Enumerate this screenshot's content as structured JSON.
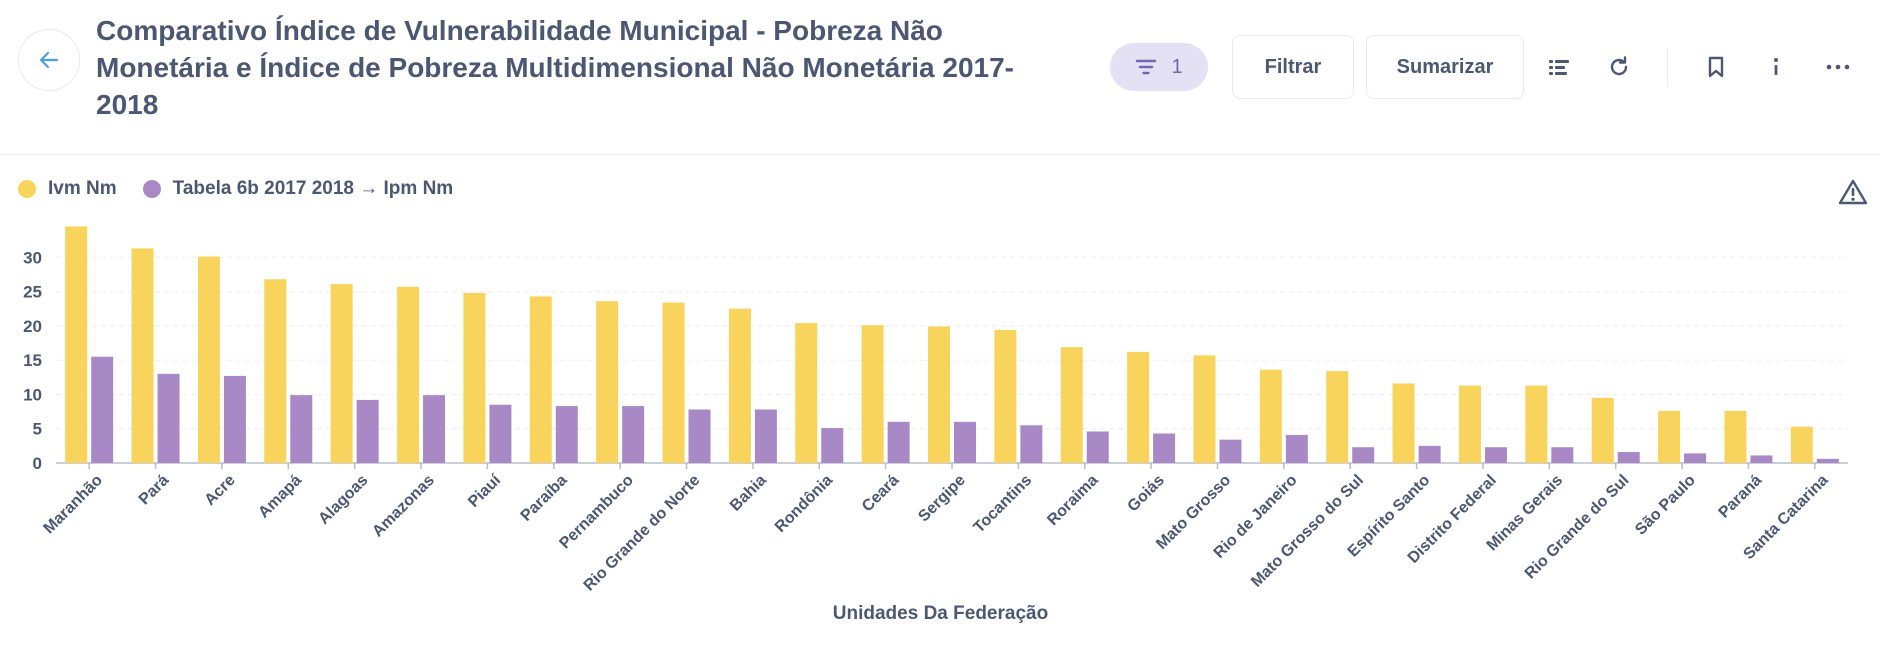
{
  "header": {
    "title": "Comparativo Índice de Vulnerabilidade Municipal - Pobreza Não Monetária e Índice de Pobreza Multidimensional Não Monetária 2017-2018",
    "filter_count": "1",
    "filter_button": "Filtrar",
    "summarize_button": "Sumarizar"
  },
  "colors": {
    "series1": "#f9d45c",
    "series2": "#a989c5",
    "accent": "#509ee3"
  },
  "icons": [
    "arrow-left-icon",
    "filter-icon",
    "list-icon",
    "refresh-icon",
    "bookmark-icon",
    "info-icon",
    "more-icon",
    "warning-icon"
  ],
  "chart_data": {
    "type": "bar",
    "title": "",
    "xlabel": "Unidades Da Federação",
    "ylabel": "",
    "ylim": [
      0,
      35
    ],
    "yticks": [
      0,
      5,
      10,
      15,
      20,
      25,
      30
    ],
    "legend_position": "top-left",
    "grid": true,
    "categories": [
      "Maranhão",
      "Pará",
      "Acre",
      "Amapá",
      "Alagoas",
      "Amazonas",
      "Piauí",
      "Paraíba",
      "Pernambuco",
      "Rio Grande do Norte",
      "Bahia",
      "Rondônia",
      "Ceará",
      "Sergipe",
      "Tocantins",
      "Roraima",
      "Goiás",
      "Mato Grosso",
      "Rio de Janeiro",
      "Mato Grosso do Sul",
      "Espírito Santo",
      "Distrito Federal",
      "Minas Gerais",
      "Rio Grande do Sul",
      "São Paulo",
      "Paraná",
      "Santa Catarina"
    ],
    "series": [
      {
        "name": "Ivm Nm",
        "values": [
          34.5,
          31.3,
          30.1,
          26.8,
          26.1,
          25.7,
          24.8,
          24.3,
          23.6,
          23.4,
          22.5,
          20.4,
          20.1,
          19.9,
          19.4,
          16.9,
          16.2,
          15.7,
          13.6,
          13.4,
          11.6,
          11.3,
          11.3,
          9.5,
          7.6,
          7.6,
          5.3
        ]
      },
      {
        "name": "Tabela 6b 2017 2018 → Ipm Nm",
        "values": [
          15.5,
          13.0,
          12.7,
          9.9,
          9.2,
          9.9,
          8.5,
          8.3,
          8.3,
          7.8,
          7.8,
          5.1,
          6.0,
          6.0,
          5.5,
          4.6,
          4.3,
          3.4,
          4.1,
          2.3,
          2.5,
          2.3,
          2.3,
          1.6,
          1.4,
          1.1,
          0.6
        ]
      }
    ]
  }
}
